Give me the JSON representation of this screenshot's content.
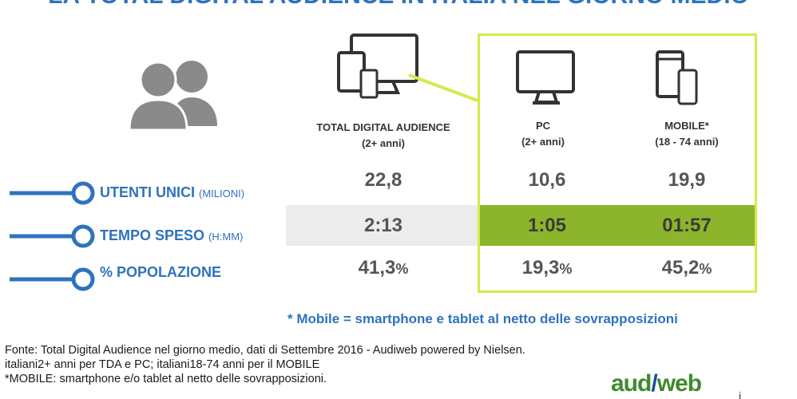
{
  "title": "LA TOTAL DIGITAL AUDIENCE IN ITALIA NEL GIORNO MEDIO",
  "rows": [
    {
      "label": "UTENTI UNICI",
      "unit": "(MILIONI)"
    },
    {
      "label": "TEMPO SPESO",
      "unit": "(H:MM)"
    },
    {
      "label": "% POPOLAZIONE",
      "unit": ""
    }
  ],
  "columns": [
    {
      "header": "TOTAL DIGITAL AUDIENCE",
      "sub": "(2+ anni)",
      "icon": "multi-device-icon",
      "values": {
        "utenti": "22,8",
        "tempo": "2:13",
        "popolazione": "41,3",
        "pct": "%"
      }
    },
    {
      "header": "PC",
      "sub": "(2+ anni)",
      "icon": "desktop-monitor-icon",
      "values": {
        "utenti": "10,6",
        "tempo": "1:05",
        "popolazione": "19,3",
        "pct": "%"
      }
    },
    {
      "header": "MOBILE*",
      "sub": "(18 - 74 anni)",
      "icon": "mobile-devices-icon",
      "values": {
        "utenti": "19,9",
        "tempo": "01:57",
        "popolazione": "45,2",
        "pct": "%"
      }
    }
  ],
  "mobile_note": "* Mobile = smartphone e tablet al netto delle sovrapposizioni",
  "source": {
    "line1": "Fonte: Total Digital Audience nel giorno medio, dati di Settembre 2016 - Audiweb powered by Nielsen.",
    "line2": "italiani2+ anni per TDA e PC; italiani18-74 anni per il MOBILE",
    "line3": "*MOBILE: smartphone e/o tablet al netto delle sovrapposizioni."
  },
  "logo": {
    "part1": "aud",
    "slash": "/",
    "part2": "web",
    "tail": "i"
  },
  "colors": {
    "accent": "#2E73BD",
    "highlight_border": "#D8E94C",
    "green_fill": "#8DB52B",
    "gray_fill": "#ECECEC"
  }
}
